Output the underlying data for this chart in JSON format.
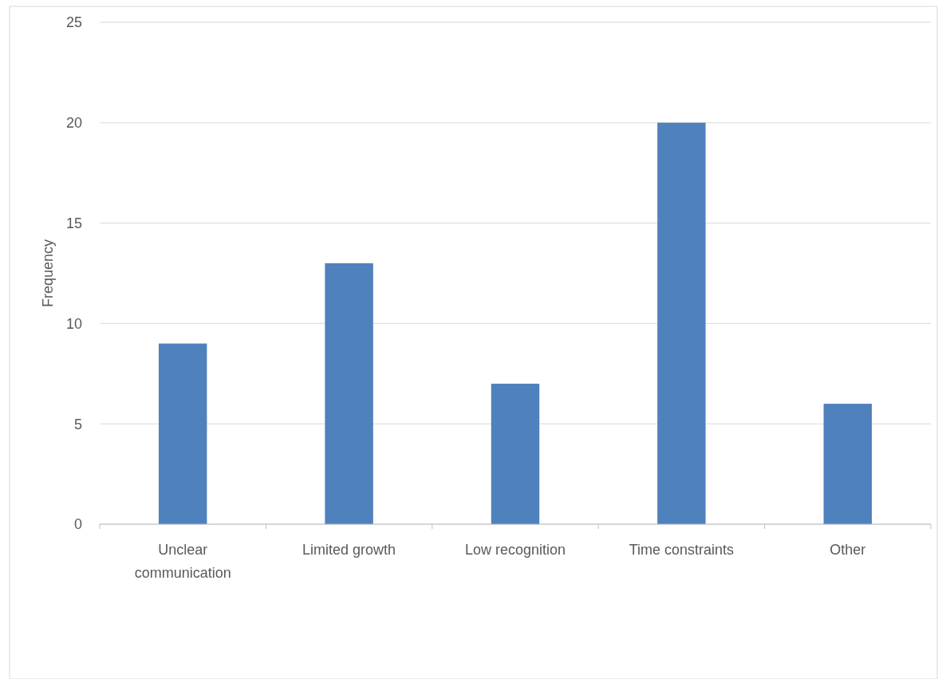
{
  "chart_data": {
    "type": "bar",
    "ylabel": "Frequency",
    "categories": [
      "Unclear communication",
      "Limited growth",
      "Low recognition",
      "Time constraints",
      "Other"
    ],
    "values": [
      9,
      13,
      7,
      20,
      6
    ],
    "color": "#4f81bd",
    "ylim": [
      0,
      25
    ],
    "yticks": [
      0,
      5,
      10,
      15,
      20,
      25
    ],
    "grid": "y"
  }
}
